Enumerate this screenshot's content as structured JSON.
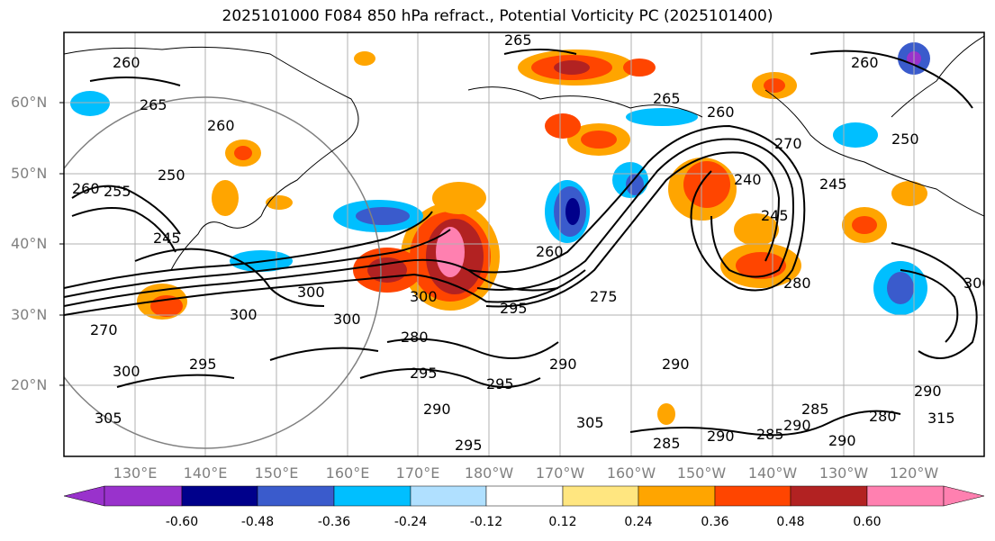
{
  "title": "2025101000 F084 850 hPa refract., Potential Vorticity PC (2025101400)",
  "latitude_labels": [
    "60°N",
    "50°N",
    "40°N",
    "30°N",
    "20°N"
  ],
  "longitude_labels": [
    "130°E",
    "140°E",
    "150°E",
    "160°E",
    "170°E",
    "180°W",
    "170°W",
    "160°W",
    "150°W",
    "140°W",
    "130°W",
    "120°W"
  ],
  "colorbar": {
    "tick_labels": [
      "-0.60",
      "-0.48",
      "-0.36",
      "-0.24",
      "-0.12",
      "0.12",
      "0.24",
      "0.36",
      "0.48",
      "0.60"
    ],
    "colors": [
      "#9932cc",
      "#00008b",
      "#3a5bcc",
      "#00bfff",
      "#b0e0ff",
      "#ffffff",
      "#ffe680",
      "#ffa500",
      "#ff4500",
      "#b22222",
      "#ff80b0"
    ]
  },
  "contour_labels": [
    "260",
    "265",
    "255",
    "250",
    "245",
    "240",
    "270",
    "275",
    "280",
    "285",
    "290",
    "295",
    "300",
    "305"
  ]
}
